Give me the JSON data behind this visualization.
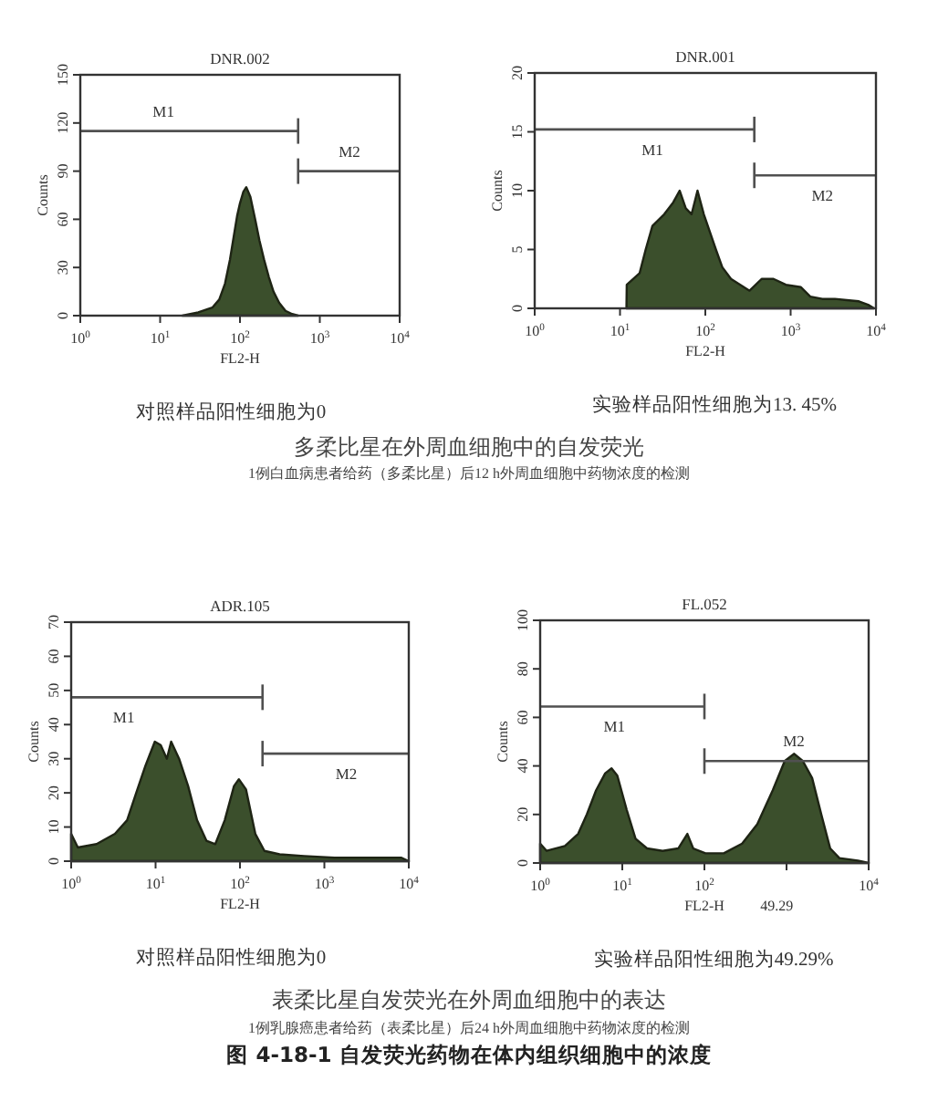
{
  "chart_data": [
    {
      "type": "area",
      "title": "DNR.002",
      "xlabel": "FL2-H",
      "ylabel": "Counts",
      "log": "x",
      "xlim": [
        1,
        10000
      ],
      "ylim": [
        0,
        150
      ],
      "xticks": [
        {
          "value": 1,
          "label": "10$^{0}$"
        },
        {
          "value": 10,
          "label": "10$^{1}$"
        },
        {
          "value": 100,
          "label": "10$^{2}$"
        },
        {
          "value": 1000,
          "label": "10$^{3}$"
        },
        {
          "value": 10000,
          "label": "10$^{4}$"
        }
      ],
      "yticks": [
        0,
        30,
        60,
        90,
        120,
        150
      ],
      "series": [
        {
          "color": "#3b4f2c",
          "x": [
            19,
            30,
            45,
            55,
            65,
            75,
            84,
            92,
            100,
            110,
            120,
            135,
            155,
            175,
            200,
            230,
            263,
            310,
            372,
            450,
            535
          ],
          "values": [
            0,
            2,
            5,
            10,
            20,
            35,
            50,
            62,
            70,
            77,
            80,
            74,
            60,
            47,
            35,
            24,
            15,
            8,
            3,
            1,
            0
          ]
        },
        {
          "type": "line",
          "color": "#505050",
          "x": [
            1,
            535
          ],
          "values": [
            115,
            115
          ]
        },
        {
          "type": "line",
          "color": "#505050",
          "x": [
            535,
            10000
          ],
          "values": [
            90,
            90
          ]
        }
      ],
      "annotations": [
        {
          "text": "M1",
          "x": 11,
          "y": 115
        },
        {
          "text": "M2",
          "x": 2350,
          "y": 90
        },
        "对照样品阳性细胞为0"
      ]
    },
    {
      "type": "area",
      "title": "DNR.001",
      "xlabel": "FL2-H",
      "ylabel": "Counts",
      "log": "x",
      "xlim": [
        1,
        10000
      ],
      "ylim": [
        0,
        20
      ],
      "xticks": [
        {
          "value": 1,
          "label": "10$^{0}$"
        },
        {
          "value": 10,
          "label": "10$^{1}$"
        },
        {
          "value": 100,
          "label": "10$^{2}$"
        },
        {
          "value": 1000,
          "label": "10$^{3}$"
        },
        {
          "value": 10000,
          "label": "10$^{4}$"
        }
      ],
      "yticks": [
        0,
        5,
        10,
        15,
        20
      ],
      "series": [
        {
          "color": "#3b4f2c",
          "x": [
            11.9,
            12,
            17,
            20,
            24,
            33,
            42,
            50,
            59,
            69,
            81,
            96,
            113,
            133,
            158,
            200,
            257,
            330,
            457,
            630,
            880,
            1320,
            1700,
            2350,
            3300,
            4550,
            6300,
            8100,
            9500
          ],
          "values": [
            0,
            2,
            3,
            5,
            7,
            8,
            9,
            10,
            8.5,
            8,
            10,
            8,
            6.5,
            5,
            3.5,
            2.5,
            2,
            1.5,
            2.5,
            2.5,
            2,
            1.8,
            1,
            0.8,
            0.8,
            0.7,
            0.6,
            0.3,
            0
          ]
        },
        {
          "type": "line",
          "color": "#505050",
          "x": [
            1,
            375
          ],
          "values": [
            15.2,
            15.2
          ]
        },
        {
          "type": "line",
          "color": "#505050",
          "x": [
            375,
            10000
          ],
          "values": [
            11.3,
            11.3
          ]
        }
      ],
      "annotations": [
        {
          "text": "M1",
          "x": 24,
          "y": 15.2
        },
        {
          "text": "M2",
          "x": 2350,
          "y": 11.3
        },
        "实验样品阳性细胞为13. 45%"
      ]
    },
    {
      "type": "other",
      "annotations": [
        "多柔比星在外周血细胞中的自发荧光",
        "1例白血病患者给药（多柔比星）后12 h外周血细胞中药物浓度的检测"
      ]
    },
    {
      "type": "area",
      "title": "ADR.105",
      "xlabel": "FL2-H",
      "ylabel": "Counts",
      "log": "x",
      "xlim": [
        1,
        10000
      ],
      "ylim": [
        0,
        70
      ],
      "xticks": [
        {
          "value": 1,
          "label": "10$^{0}$"
        },
        {
          "value": 10,
          "label": "10$^{1}$"
        },
        {
          "value": 100,
          "label": "10$^{2}$"
        },
        {
          "value": 1000,
          "label": "10$^{3}$"
        },
        {
          "value": 10000,
          "label": "10$^{4}$"
        }
      ],
      "yticks": [
        0,
        10,
        20,
        30,
        40,
        50,
        60,
        70
      ],
      "series": [
        {
          "color": "#3b4f2c",
          "x": [
            1,
            1.2,
            2,
            3.3,
            4.6,
            5.9,
            7.6,
            9.8,
            11.5,
            13.6,
            15.3,
            19,
            24.3,
            31,
            40,
            51,
            66,
            85,
            97,
            118,
            152,
            195,
            295,
            575,
            1320,
            3020,
            8200,
            10000
          ],
          "values": [
            8,
            4,
            5,
            8,
            12,
            20,
            28,
            35,
            34,
            30,
            35,
            30,
            22,
            12,
            6,
            5,
            12,
            22,
            24,
            21,
            8,
            3,
            2,
            1.5,
            1,
            1,
            1,
            0
          ]
        },
        {
          "type": "line",
          "color": "#505050",
          "x": [
            1,
            185
          ],
          "values": [
            48,
            48
          ]
        },
        {
          "type": "line",
          "color": "#505050",
          "x": [
            185,
            10000
          ],
          "values": [
            31.5,
            31.5
          ]
        }
      ],
      "annotations": [
        {
          "text": "M1",
          "x": 4.2,
          "y": 48
        },
        {
          "text": "M2",
          "x": 1820,
          "y": 31.5
        },
        "对照样品阳性细胞为0"
      ]
    },
    {
      "type": "area",
      "title": "FL.052",
      "xlabel": "FL2-H",
      "ylabel": "Counts",
      "log": "x",
      "xlim": [
        1,
        10000
      ],
      "ylim": [
        0,
        100
      ],
      "xticks": [
        {
          "value": 1,
          "label": "10$^{0}$"
        },
        {
          "value": 10,
          "label": "10$^{1}$"
        },
        {
          "value": 100,
          "label": "10$^{2}$"
        },
        {
          "value": 1000,
          "label": null
        },
        {
          "value": 10000,
          "label": "10$^{4}$"
        }
      ],
      "yticks": [
        0,
        20,
        40,
        60,
        80,
        100
      ],
      "series": [
        {
          "color": "#3b4f2c",
          "x": [
            1,
            1.2,
            2,
            2.9,
            3.7,
            4.8,
            6.2,
            7.4,
            8.7,
            11.3,
            14.5,
            20,
            31,
            48,
            62,
            73,
            103,
            172,
            288,
            440,
            680,
            950,
            1240,
            1580,
            2050,
            2650,
            3400,
            4400,
            7400,
            10000
          ],
          "values": [
            8,
            5,
            7,
            12,
            20,
            30,
            37,
            39,
            36,
            22,
            10,
            6,
            5,
            6,
            12,
            6,
            4,
            4,
            8,
            16,
            30,
            42,
            45,
            42,
            35,
            20,
            6,
            2,
            1,
            0
          ]
        },
        {
          "type": "line",
          "color": "#505050",
          "x": [
            1,
            100
          ],
          "values": [
            64.5,
            64.5
          ]
        },
        {
          "type": "line",
          "color": "#505050",
          "x": [
            100,
            10000
          ],
          "values": [
            42,
            42
          ]
        }
      ],
      "annotations": [
        {
          "text": "M1",
          "x": 8,
          "y": 64.5
        },
        {
          "text": "M2",
          "x": 1230,
          "y": 42
        },
        "49.29",
        "实验样品阳性细胞为49.29%"
      ]
    },
    {
      "type": "other",
      "annotations": [
        "表柔比星自发荧光在外周血细胞中的表达",
        "1例乳腺癌患者给药（表柔比星）后24 h外周血细胞中药物浓度的检测",
        "图 4-18-1  自发荧光药物在体内组织细胞中的浓度"
      ]
    }
  ]
}
